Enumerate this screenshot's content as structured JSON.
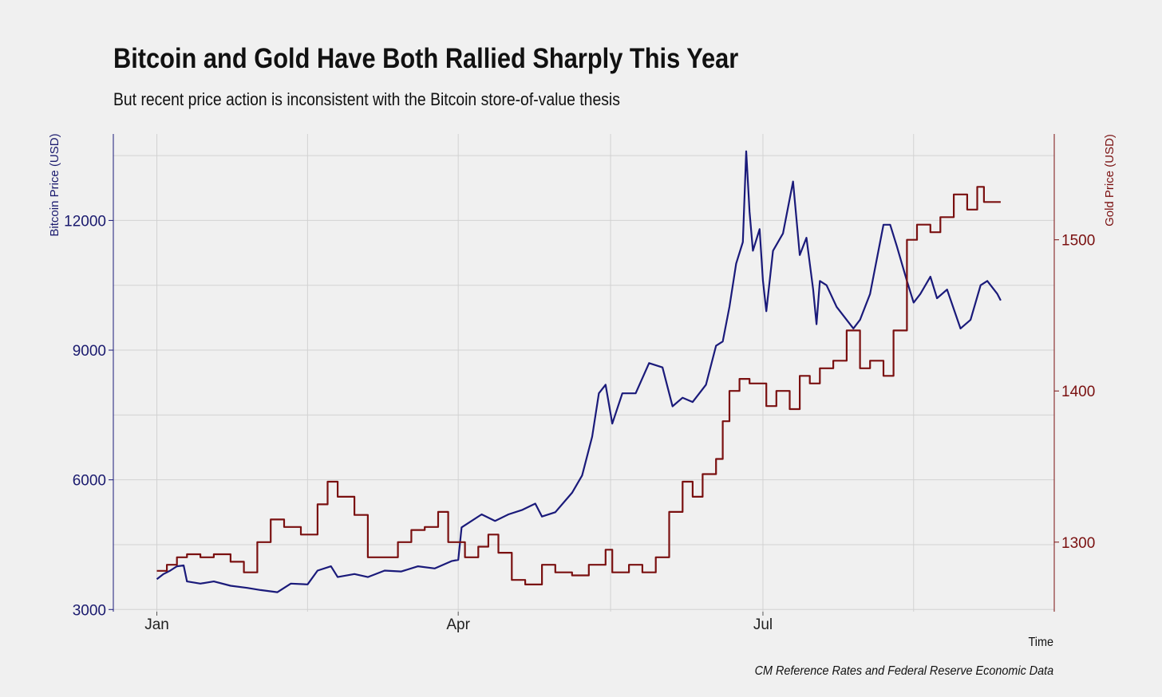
{
  "chart_data": {
    "type": "line",
    "title": "Bitcoin and Gold Have Both Rallied Sharply This Year",
    "subtitle": "But recent price action is inconsistent with the Bitcoin store-of-value thesis",
    "caption": "CM Reference Rates and Federal Reserve Economic Data",
    "xlabel": "Time",
    "x_tick_labels": [
      "Jan",
      "Apr",
      "Jul"
    ],
    "x_tick_dates": [
      "2019-01-01",
      "2019-04-01",
      "2019-07-01"
    ],
    "xlim": [
      "2018-12-19",
      "2019-09-26"
    ],
    "y_left": {
      "label": "Bitcoin Price (USD)",
      "ticks": [
        3000,
        6000,
        9000,
        12000
      ],
      "lim": [
        2950,
        14000
      ],
      "color": "#1a1a7a"
    },
    "y_right": {
      "label": "Gold Price (USD)",
      "ticks": [
        1300,
        1400,
        1500
      ],
      "lim": [
        1254,
        1570
      ],
      "color": "#7a1010"
    },
    "grid": true,
    "series": [
      {
        "name": "Bitcoin Price (USD)",
        "axis": "left",
        "color": "#1a1a7a",
        "step": false,
        "points": [
          [
            "2019-01-01",
            3700
          ],
          [
            "2019-01-03",
            3820
          ],
          [
            "2019-01-05",
            3900
          ],
          [
            "2019-01-07",
            4000
          ],
          [
            "2019-01-09",
            4020
          ],
          [
            "2019-01-10",
            3650
          ],
          [
            "2019-01-14",
            3600
          ],
          [
            "2019-01-18",
            3650
          ],
          [
            "2019-01-23",
            3550
          ],
          [
            "2019-01-28",
            3500
          ],
          [
            "2019-02-01",
            3450
          ],
          [
            "2019-02-06",
            3400
          ],
          [
            "2019-02-10",
            3600
          ],
          [
            "2019-02-15",
            3580
          ],
          [
            "2019-02-18",
            3900
          ],
          [
            "2019-02-22",
            4000
          ],
          [
            "2019-02-24",
            3750
          ],
          [
            "2019-03-01",
            3820
          ],
          [
            "2019-03-05",
            3750
          ],
          [
            "2019-03-10",
            3900
          ],
          [
            "2019-03-15",
            3880
          ],
          [
            "2019-03-20",
            4000
          ],
          [
            "2019-03-25",
            3950
          ],
          [
            "2019-03-30",
            4120
          ],
          [
            "2019-04-01",
            4150
          ],
          [
            "2019-04-02",
            4900
          ],
          [
            "2019-04-04",
            5000
          ],
          [
            "2019-04-08",
            5200
          ],
          [
            "2019-04-12",
            5050
          ],
          [
            "2019-04-16",
            5200
          ],
          [
            "2019-04-20",
            5300
          ],
          [
            "2019-04-24",
            5450
          ],
          [
            "2019-04-26",
            5150
          ],
          [
            "2019-04-30",
            5250
          ],
          [
            "2019-05-05",
            5700
          ],
          [
            "2019-05-08",
            6100
          ],
          [
            "2019-05-11",
            7000
          ],
          [
            "2019-05-13",
            8000
          ],
          [
            "2019-05-15",
            8200
          ],
          [
            "2019-05-17",
            7300
          ],
          [
            "2019-05-20",
            8000
          ],
          [
            "2019-05-24",
            8000
          ],
          [
            "2019-05-28",
            8700
          ],
          [
            "2019-06-01",
            8600
          ],
          [
            "2019-06-04",
            7700
          ],
          [
            "2019-06-07",
            7900
          ],
          [
            "2019-06-10",
            7800
          ],
          [
            "2019-06-14",
            8200
          ],
          [
            "2019-06-17",
            9100
          ],
          [
            "2019-06-19",
            9200
          ],
          [
            "2019-06-21",
            10000
          ],
          [
            "2019-06-23",
            11000
          ],
          [
            "2019-06-25",
            11500
          ],
          [
            "2019-06-26",
            13600
          ],
          [
            "2019-06-27",
            12200
          ],
          [
            "2019-06-28",
            11300
          ],
          [
            "2019-06-30",
            11800
          ],
          [
            "2019-07-01",
            10600
          ],
          [
            "2019-07-02",
            9900
          ],
          [
            "2019-07-04",
            11300
          ],
          [
            "2019-07-07",
            11700
          ],
          [
            "2019-07-09",
            12500
          ],
          [
            "2019-07-10",
            12900
          ],
          [
            "2019-07-12",
            11200
          ],
          [
            "2019-07-14",
            11600
          ],
          [
            "2019-07-16",
            10400
          ],
          [
            "2019-07-17",
            9600
          ],
          [
            "2019-07-18",
            10600
          ],
          [
            "2019-07-20",
            10500
          ],
          [
            "2019-07-23",
            10000
          ],
          [
            "2019-07-25",
            9800
          ],
          [
            "2019-07-28",
            9500
          ],
          [
            "2019-07-30",
            9700
          ],
          [
            "2019-08-02",
            10300
          ],
          [
            "2019-08-05",
            11500
          ],
          [
            "2019-08-06",
            11900
          ],
          [
            "2019-08-08",
            11900
          ],
          [
            "2019-08-10",
            11400
          ],
          [
            "2019-08-13",
            10600
          ],
          [
            "2019-08-15",
            10100
          ],
          [
            "2019-08-17",
            10300
          ],
          [
            "2019-08-20",
            10700
          ],
          [
            "2019-08-22",
            10200
          ],
          [
            "2019-08-25",
            10400
          ],
          [
            "2019-08-29",
            9500
          ],
          [
            "2019-09-01",
            9700
          ],
          [
            "2019-09-04",
            10500
          ],
          [
            "2019-09-06",
            10600
          ],
          [
            "2019-09-09",
            10300
          ],
          [
            "2019-09-10",
            10150
          ]
        ]
      },
      {
        "name": "Gold Price (USD)",
        "axis": "right",
        "color": "#7a1010",
        "step": true,
        "points": [
          [
            "2019-01-01",
            1281
          ],
          [
            "2019-01-04",
            1285
          ],
          [
            "2019-01-07",
            1290
          ],
          [
            "2019-01-10",
            1292
          ],
          [
            "2019-01-14",
            1290
          ],
          [
            "2019-01-18",
            1292
          ],
          [
            "2019-01-23",
            1287
          ],
          [
            "2019-01-27",
            1280
          ],
          [
            "2019-01-31",
            1300
          ],
          [
            "2019-02-04",
            1315
          ],
          [
            "2019-02-08",
            1310
          ],
          [
            "2019-02-13",
            1305
          ],
          [
            "2019-02-18",
            1325
          ],
          [
            "2019-02-21",
            1340
          ],
          [
            "2019-02-24",
            1330
          ],
          [
            "2019-03-01",
            1318
          ],
          [
            "2019-03-05",
            1290
          ],
          [
            "2019-03-10",
            1290
          ],
          [
            "2019-03-14",
            1300
          ],
          [
            "2019-03-18",
            1308
          ],
          [
            "2019-03-22",
            1310
          ],
          [
            "2019-03-26",
            1320
          ],
          [
            "2019-03-29",
            1300
          ],
          [
            "2019-04-03",
            1290
          ],
          [
            "2019-04-07",
            1297
          ],
          [
            "2019-04-10",
            1305
          ],
          [
            "2019-04-13",
            1293
          ],
          [
            "2019-04-17",
            1275
          ],
          [
            "2019-04-21",
            1272
          ],
          [
            "2019-04-26",
            1285
          ],
          [
            "2019-04-30",
            1280
          ],
          [
            "2019-05-05",
            1278
          ],
          [
            "2019-05-10",
            1285
          ],
          [
            "2019-05-15",
            1295
          ],
          [
            "2019-05-17",
            1280
          ],
          [
            "2019-05-22",
            1285
          ],
          [
            "2019-05-26",
            1280
          ],
          [
            "2019-05-30",
            1290
          ],
          [
            "2019-06-03",
            1320
          ],
          [
            "2019-06-07",
            1340
          ],
          [
            "2019-06-10",
            1330
          ],
          [
            "2019-06-13",
            1345
          ],
          [
            "2019-06-17",
            1355
          ],
          [
            "2019-06-19",
            1380
          ],
          [
            "2019-06-21",
            1400
          ],
          [
            "2019-06-24",
            1408
          ],
          [
            "2019-06-27",
            1405
          ],
          [
            "2019-07-02",
            1390
          ],
          [
            "2019-07-05",
            1400
          ],
          [
            "2019-07-09",
            1388
          ],
          [
            "2019-07-12",
            1410
          ],
          [
            "2019-07-15",
            1405
          ],
          [
            "2019-07-18",
            1415
          ],
          [
            "2019-07-22",
            1420
          ],
          [
            "2019-07-26",
            1440
          ],
          [
            "2019-07-30",
            1415
          ],
          [
            "2019-08-02",
            1420
          ],
          [
            "2019-08-06",
            1410
          ],
          [
            "2019-08-09",
            1440
          ],
          [
            "2019-08-13",
            1500
          ],
          [
            "2019-08-16",
            1510
          ],
          [
            "2019-08-20",
            1505
          ],
          [
            "2019-08-23",
            1515
          ],
          [
            "2019-08-27",
            1530
          ],
          [
            "2019-08-31",
            1520
          ],
          [
            "2019-09-03",
            1535
          ],
          [
            "2019-09-05",
            1525
          ],
          [
            "2019-09-10",
            1525
          ]
        ]
      }
    ]
  }
}
